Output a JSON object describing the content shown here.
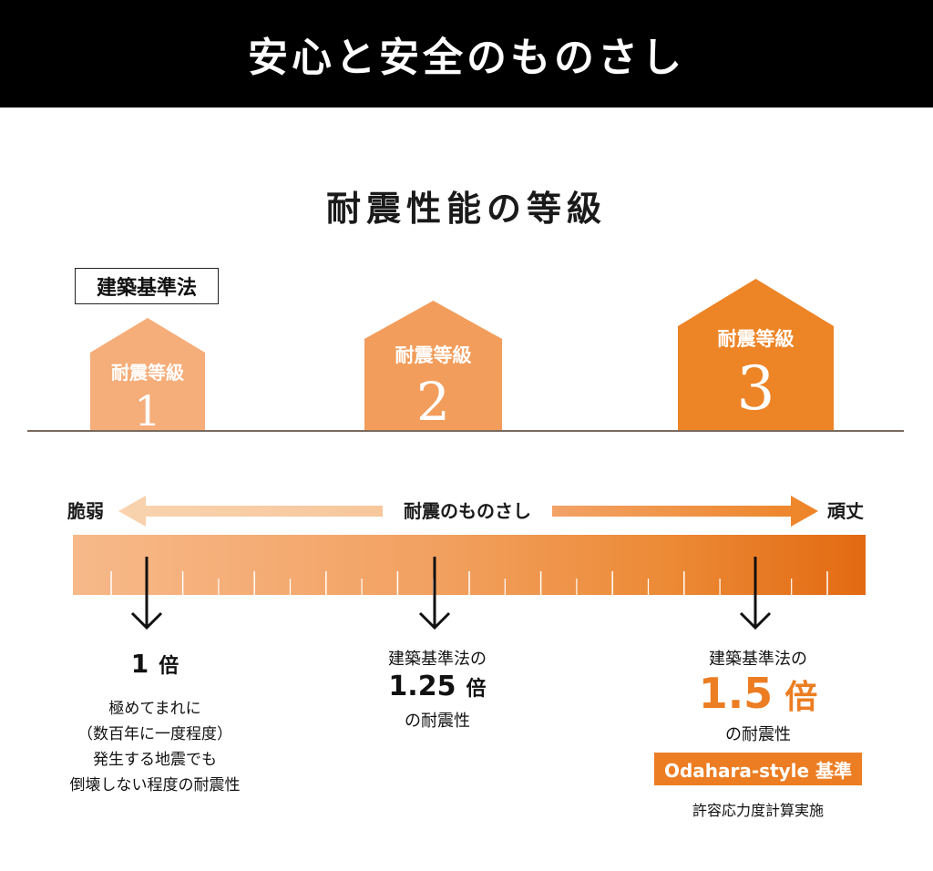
{
  "header": {
    "title": "安心と安全のものさし"
  },
  "section": {
    "title": "耐震性能の等級"
  },
  "law_label": "建築基準法",
  "houses": [
    {
      "label": "耐震等級",
      "grade": "1",
      "color": "#f5ad79"
    },
    {
      "label": "耐震等級",
      "grade": "2",
      "color": "#f29d5b"
    },
    {
      "label": "耐震等級",
      "grade": "3",
      "color": "#ed8426"
    }
  ],
  "scale": {
    "left": "脆弱",
    "center": "耐震のものさし",
    "right": "頑丈"
  },
  "columns": {
    "c1": {
      "multiplier": "1",
      "unit": "倍",
      "desc": [
        "極めてまれに",
        "（数百年に一度程度）",
        "発生する地震でも",
        "倒壊しない程度の耐震性"
      ]
    },
    "c2": {
      "pre": "建築基準法の",
      "multiplier": "1.25",
      "unit": "倍",
      "post": "の耐震性"
    },
    "c3": {
      "pre": "建築基準法の",
      "multiplier": "1.5",
      "unit": "倍",
      "post": "の耐震性",
      "badge": "Odahara-style 基準",
      "note": "許容応力度計算実施"
    }
  },
  "colors": {
    "accent": "#ec7d22",
    "arrow_light": "#f7cfa9",
    "arrow_dark": "#ed8426",
    "header_bg": "#000000"
  }
}
